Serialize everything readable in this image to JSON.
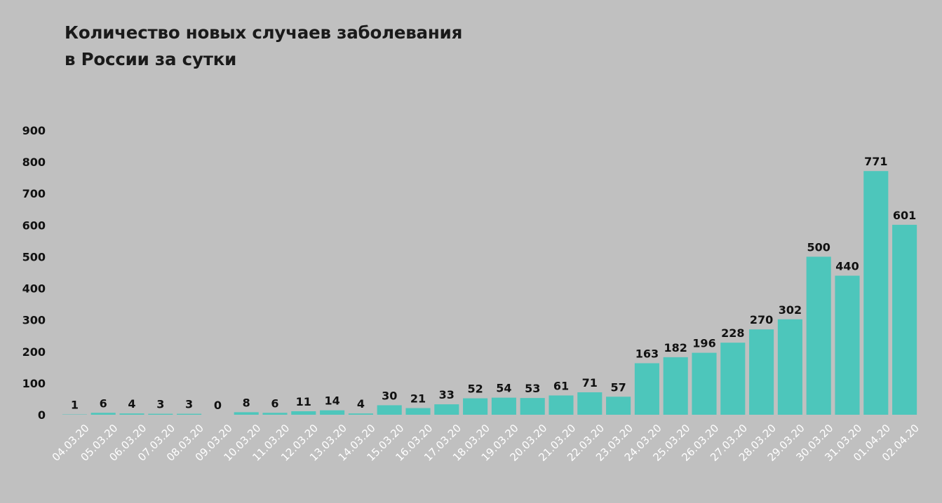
{
  "chart_data": {
    "type": "bar",
    "title": "Количество новых случаев заболевания\nв России за сутки",
    "categories": [
      "04.03.20",
      "05.03.20",
      "06.03.20",
      "07.03.20",
      "08.03.20",
      "09.03.20",
      "10.03.20",
      "11.03.20",
      "12.03.20",
      "13.03.20",
      "14.03.20",
      "15.03.20",
      "16.03.20",
      "17.03.20",
      "18.03.20",
      "19.03.20",
      "20.03.20",
      "21.03.20",
      "22.03.20",
      "23.03.20",
      "24.03.20",
      "25.03.20",
      "26.03.20",
      "27.03.20",
      "28.03.20",
      "29.03.20",
      "30.03.20",
      "31.03.20",
      "01.04.20",
      "02.04.20"
    ],
    "values": [
      1,
      6,
      4,
      3,
      3,
      0,
      8,
      6,
      11,
      14,
      4,
      30,
      21,
      33,
      52,
      54,
      53,
      61,
      71,
      57,
      163,
      182,
      196,
      228,
      270,
      302,
      500,
      440,
      771,
      601
    ],
    "yticks": [
      0,
      100,
      200,
      300,
      400,
      500,
      600,
      700,
      800,
      900
    ],
    "ylim": [
      0,
      900
    ],
    "grid": false,
    "legend": "none",
    "bar_color": "#4dc6bb",
    "xlabel": "",
    "ylabel": ""
  }
}
